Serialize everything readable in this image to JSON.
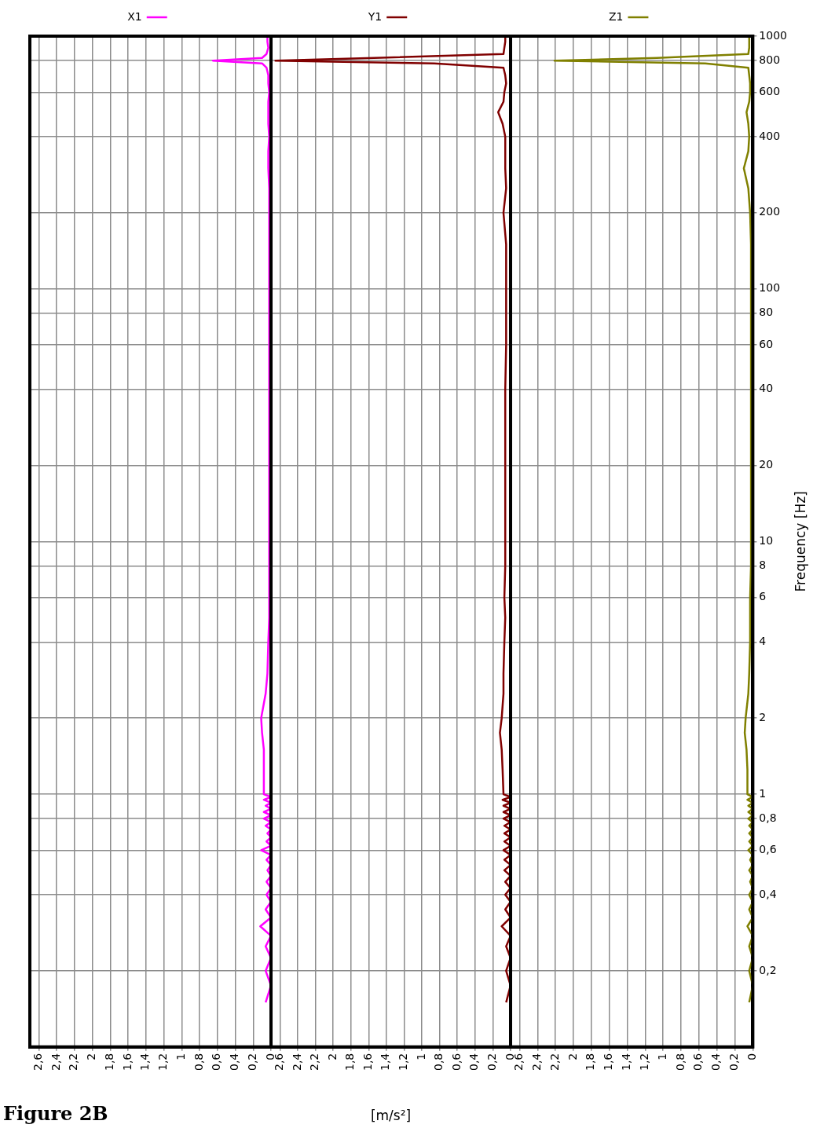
{
  "chart_data": [
    {
      "type": "line",
      "orientation": "horizontal",
      "title": "Figure 2B",
      "legend": "top",
      "yticks": [
        0.2,
        0.4,
        0.6,
        0.8,
        1,
        2,
        4,
        6,
        8,
        10,
        20,
        40,
        60,
        80,
        100,
        200,
        400,
        600,
        800,
        1000
      ],
      "grid": true,
      "marker": "none",
      "line_style": "solid",
      "log": "y",
      "tick_labels": "x",
      "x": [
        0.15,
        0.175,
        0.2,
        0.225,
        0.25,
        0.275,
        0.3,
        0.325,
        0.35,
        0.375,
        0.4,
        0.425,
        0.45,
        0.475,
        0.5,
        0.525,
        0.55,
        0.575,
        0.6,
        0.625,
        0.65,
        0.675,
        0.7,
        0.725,
        0.75,
        0.775,
        0.8,
        0.825,
        0.85,
        0.875,
        0.9,
        0.925,
        0.95,
        0.975,
        1,
        1.25,
        1.5,
        1.75,
        2,
        2.5,
        3,
        4,
        5,
        6,
        8,
        10,
        15,
        20,
        30,
        40,
        60,
        80,
        100,
        150,
        200,
        250,
        300,
        350,
        400,
        450,
        500,
        550,
        600,
        650,
        700,
        750,
        780,
        800,
        820,
        850,
        900,
        950,
        1000
      ],
      "series": [
        {
          "name": "X1",
          "color": "#ff00ff",
          "values": [
            0.06,
            0,
            0.06,
            0,
            0.06,
            0,
            0.12,
            0,
            0.06,
            0,
            0.05,
            0,
            0.05,
            0,
            0.04,
            0,
            0.05,
            0,
            0.11,
            0,
            0.05,
            0,
            0.04,
            0,
            0.06,
            0,
            0.08,
            0,
            0.08,
            0,
            0.06,
            0,
            0.08,
            0,
            0.08,
            0.08,
            0.08,
            0.1,
            0.11,
            0.06,
            0.04,
            0.03,
            0.02,
            0.02,
            0.02,
            0.02,
            0.02,
            0.02,
            0.02,
            0.02,
            0.02,
            0.02,
            0.02,
            0.02,
            0.02,
            0.02,
            0.03,
            0.03,
            0.02,
            0.03,
            0.03,
            0.03,
            0.02,
            0.03,
            0.03,
            0.05,
            0.1,
            0.65,
            0.1,
            0.05,
            0.03,
            0.04,
            0.04
          ]
        }
      ],
      "xlim": [
        2.7,
        0
      ],
      "xticks": [
        0,
        {
          "value": 0.2,
          "label": "0,2"
        },
        {
          "value": 0.4,
          "label": "0,4"
        },
        {
          "value": 0.6,
          "label": "0,6"
        },
        {
          "value": 0.8,
          "label": "0,8"
        },
        1,
        {
          "value": 1.2,
          "label": "1,2"
        },
        {
          "value": 1.4,
          "label": "1,4"
        },
        {
          "value": 1.6,
          "label": "1,6"
        },
        {
          "value": 1.8,
          "label": "1,8"
        },
        2,
        {
          "value": 2.2,
          "label": "2,2"
        },
        {
          "value": 2.4,
          "label": "2,4"
        },
        {
          "value": 2.6,
          "label": "2,6"
        }
      ],
      "ylim": [
        0.1,
        1000
      ]
    },
    {
      "type": "line",
      "orientation": "horizontal",
      "xlabel": "[m/s²]",
      "legend": "top",
      "yticks": [
        0.2,
        0.4,
        0.6,
        0.8,
        1,
        2,
        4,
        6,
        8,
        10,
        20,
        40,
        60,
        80,
        100,
        200,
        400,
        600,
        800,
        1000
      ],
      "grid": true,
      "marker": "none",
      "line_style": "solid",
      "log": "y",
      "tick_labels": "x",
      "x": [
        0.15,
        0.175,
        0.2,
        0.225,
        0.25,
        0.275,
        0.3,
        0.325,
        0.35,
        0.375,
        0.4,
        0.425,
        0.45,
        0.475,
        0.5,
        0.525,
        0.55,
        0.575,
        0.6,
        0.625,
        0.65,
        0.675,
        0.7,
        0.725,
        0.75,
        0.775,
        0.8,
        0.825,
        0.85,
        0.875,
        0.9,
        0.925,
        0.95,
        0.975,
        1,
        1.25,
        1.5,
        1.75,
        2,
        2.5,
        3,
        4,
        5,
        6,
        8,
        10,
        15,
        20,
        30,
        40,
        60,
        80,
        100,
        150,
        200,
        250,
        300,
        350,
        400,
        450,
        500,
        550,
        600,
        650,
        700,
        750,
        780,
        800,
        820,
        850,
        900,
        950,
        1000
      ],
      "series": [
        {
          "name": "Y1",
          "color": "#800000",
          "values": [
            0.05,
            0,
            0.05,
            0,
            0.05,
            0,
            0.1,
            0,
            0.06,
            0,
            0.06,
            0,
            0.06,
            0,
            0.07,
            0,
            0.07,
            0,
            0.08,
            0,
            0.07,
            0,
            0.07,
            0,
            0.07,
            0,
            0.08,
            0,
            0.08,
            0,
            0.08,
            0,
            0.09,
            0,
            0.08,
            0.09,
            0.1,
            0.12,
            0.1,
            0.08,
            0.08,
            0.07,
            0.06,
            0.07,
            0.06,
            0.06,
            0.06,
            0.06,
            0.06,
            0.06,
            0.05,
            0.05,
            0.05,
            0.05,
            0.08,
            0.05,
            0.06,
            0.06,
            0.06,
            0.09,
            0.14,
            0.08,
            0.07,
            0.05,
            0.06,
            0.08,
            0.86,
            2.65,
            1.54,
            0.08,
            0.07,
            0.06,
            0.06
          ]
        }
      ],
      "xlim": [
        2.7,
        0
      ],
      "xticks": [
        0,
        {
          "value": 0.2,
          "label": "0,2"
        },
        {
          "value": 0.4,
          "label": "0,4"
        },
        {
          "value": 0.6,
          "label": "0,6"
        },
        {
          "value": 0.8,
          "label": "0,8"
        },
        1,
        {
          "value": 1.2,
          "label": "1,2"
        },
        {
          "value": 1.4,
          "label": "1,4"
        },
        {
          "value": 1.6,
          "label": "1,6"
        },
        {
          "value": 1.8,
          "label": "1,8"
        },
        2,
        {
          "value": 2.2,
          "label": "2,2"
        },
        {
          "value": 2.4,
          "label": "2,4"
        },
        {
          "value": 2.6,
          "label": "2,6"
        }
      ],
      "ylim": [
        0.1,
        1000
      ]
    },
    {
      "type": "line",
      "orientation": "horizontal",
      "ylabel": "Frequency [Hz]",
      "legend": "top",
      "grid": true,
      "marker": "none",
      "line_style": "solid",
      "log": "y",
      "x": [
        0.15,
        0.175,
        0.2,
        0.225,
        0.25,
        0.275,
        0.3,
        0.325,
        0.35,
        0.375,
        0.4,
        0.425,
        0.45,
        0.475,
        0.5,
        0.525,
        0.55,
        0.575,
        0.6,
        0.625,
        0.65,
        0.675,
        0.7,
        0.725,
        0.75,
        0.775,
        0.8,
        0.825,
        0.85,
        0.875,
        0.9,
        0.925,
        0.95,
        0.975,
        1,
        1.25,
        1.5,
        1.75,
        2,
        2.5,
        3,
        4,
        5,
        6,
        8,
        10,
        15,
        20,
        30,
        40,
        60,
        80,
        100,
        150,
        200,
        250,
        300,
        350,
        400,
        450,
        500,
        550,
        600,
        650,
        700,
        750,
        780,
        800,
        820,
        850,
        900,
        950,
        1000
      ],
      "series": [
        {
          "name": "Z1",
          "color": "#808000",
          "values": [
            0.04,
            0,
            0.04,
            0,
            0.04,
            0,
            0.06,
            0,
            0.04,
            0,
            0.04,
            0,
            0.03,
            0,
            0.04,
            0,
            0.03,
            0,
            0.05,
            0,
            0.04,
            0,
            0.04,
            0,
            0.04,
            0,
            0.05,
            0,
            0.05,
            0,
            0.05,
            0,
            0.06,
            0,
            0.06,
            0.06,
            0.07,
            0.09,
            0.08,
            0.05,
            0.04,
            0.03,
            0.03,
            0.03,
            0.02,
            0.02,
            0.02,
            0.02,
            0.02,
            0.02,
            0.02,
            0.02,
            0.02,
            0.02,
            0.03,
            0.05,
            0.1,
            0.05,
            0.04,
            0.05,
            0.07,
            0.04,
            0.03,
            0.03,
            0.04,
            0.05,
            0.53,
            2.21,
            1.07,
            0.05,
            0.04,
            0.04,
            0.04
          ]
        }
      ],
      "xlim": [
        2.7,
        0
      ],
      "xticks": [
        0,
        {
          "value": 0.2,
          "label": "0,2"
        },
        {
          "value": 0.4,
          "label": "0,4"
        },
        {
          "value": 0.6,
          "label": "0,6"
        },
        {
          "value": 0.8,
          "label": "0,8"
        },
        1,
        {
          "value": 1.2,
          "label": "1,2"
        },
        {
          "value": 1.4,
          "label": "1,4"
        },
        {
          "value": 1.6,
          "label": "1,6"
        },
        {
          "value": 1.8,
          "label": "1,8"
        },
        2,
        {
          "value": 2.2,
          "label": "2,2"
        },
        {
          "value": 2.4,
          "label": "2,4"
        },
        {
          "value": 2.6,
          "label": "2,6"
        }
      ],
      "ylim": [
        0.1,
        1000
      ],
      "yticks": [
        {
          "value": 0.2,
          "label": "0,2"
        },
        {
          "value": 0.4,
          "label": "0,4"
        },
        {
          "value": 0.6,
          "label": "0,6"
        },
        {
          "value": 0.8,
          "label": "0,8"
        },
        1,
        2,
        4,
        6,
        8,
        10,
        20,
        40,
        60,
        80,
        100,
        200,
        400,
        600,
        800,
        1000
      ]
    }
  ]
}
